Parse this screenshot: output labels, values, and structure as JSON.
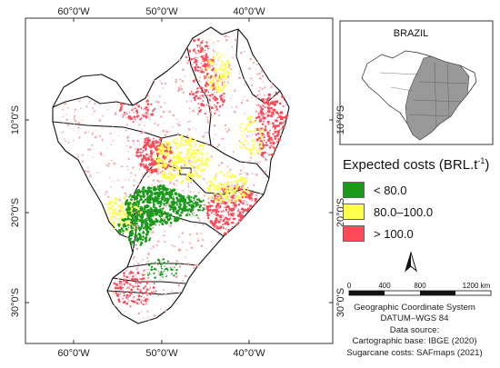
{
  "map": {
    "lon_labels": [
      "60°0'W",
      "50°0'W",
      "40°0'W"
    ],
    "lat_labels": [
      "10°0'S",
      "20°0'S",
      "30°0'S"
    ]
  },
  "inset": {
    "title": "BRAZIL"
  },
  "legend": {
    "title": "Expected costs (BRL.t",
    "title_sup": "-1",
    "title_close": ")",
    "classes": [
      {
        "label": "< 80.0",
        "color": "#1a9a1a"
      },
      {
        "label": "80.0–100.0",
        "color": "#ffff4d"
      },
      {
        "label": "> 100.0",
        "color": "#ff4a5a"
      }
    ]
  },
  "scale_bar": {
    "ticks": [
      "0",
      "400",
      "800",
      "1200 km"
    ]
  },
  "north_arrow": {
    "label": "N"
  },
  "credits": [
    "Geographic Coordinate System",
    "DATUM–WGS 84",
    "Data source:",
    "Cartographic base: IBGE (2020)",
    "Sugarcane costs: SAFmaps (2021)"
  ]
}
